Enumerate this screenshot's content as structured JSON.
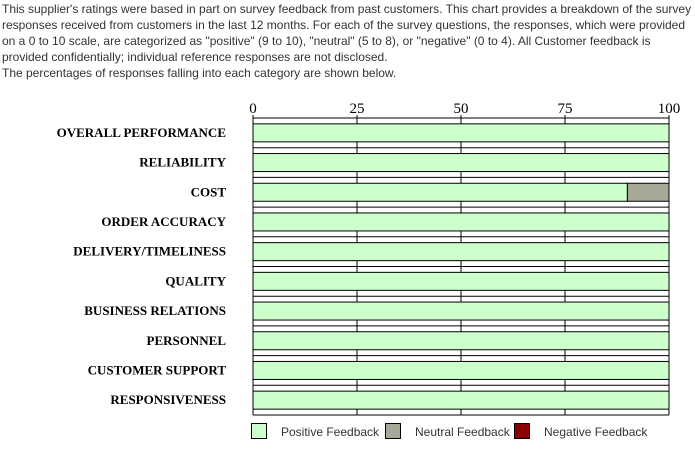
{
  "intro": {
    "paragraph": "This supplier's ratings were based in part on survey feedback from past customers. This chart provides a breakdown of the survey responses received from customers in the last 12 months. For each of the survey questions, the responses, which were provided on  a 0 to 10 scale, are categorized as \"positive\" (9 to 10), \"neutral\" (5 to 8), or \"negative\" (0 to 4). All Customer feedback is provided confidentially; individual reference responses are not disclosed.",
    "note": "The percentages of responses falling into each category are shown below."
  },
  "colors": {
    "positive": "#ccffcc",
    "neutral": "#a8a898",
    "negative": "#8b0000"
  },
  "chart_data": {
    "type": "bar",
    "orientation": "horizontal",
    "stacked": true,
    "xlim": [
      0,
      100
    ],
    "xticks": [
      "0",
      "25",
      "50",
      "75",
      "100"
    ],
    "grid": true,
    "legend_position": "bottom",
    "categories": [
      "OVERALL PERFORMANCE",
      "RELIABILITY",
      "COST",
      "ORDER ACCURACY",
      "DELIVERY/TIMELINESS",
      "QUALITY",
      "BUSINESS RELATIONS",
      "PERSONNEL",
      "CUSTOMER SUPPORT",
      "RESPONSIVENESS"
    ],
    "series": [
      {
        "name": "Positive Feedback",
        "values": [
          100,
          100,
          90,
          100,
          100,
          100,
          100,
          100,
          100,
          100
        ]
      },
      {
        "name": "Neutral Feedback",
        "values": [
          0,
          0,
          10,
          0,
          0,
          0,
          0,
          0,
          0,
          0
        ]
      },
      {
        "name": "Negative Feedback",
        "values": [
          0,
          0,
          0,
          0,
          0,
          0,
          0,
          0,
          0,
          0
        ]
      }
    ]
  }
}
